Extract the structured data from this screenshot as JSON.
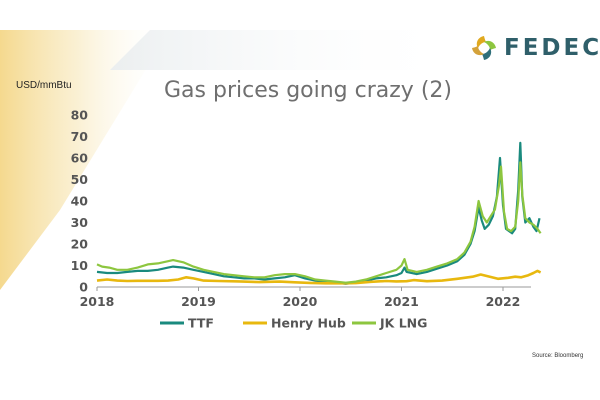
{
  "brand": {
    "name": "FEDEC"
  },
  "chart_data": {
    "type": "line",
    "title": "Gas prices going crazy (2)",
    "ylabel": "USD/mmBtu",
    "xlabel": "",
    "source": "Source: Bloomberg",
    "ylim": [
      0,
      80
    ],
    "xlim": [
      2018,
      2022.37
    ],
    "yticks": [
      0,
      10,
      20,
      30,
      40,
      50,
      60,
      70,
      80
    ],
    "xticks": [
      "2018",
      "2019",
      "2020",
      "2021",
      "2022"
    ],
    "grid": false,
    "legend_position": "bottom",
    "series": [
      {
        "name": "TTF",
        "color": "#1a8a7e",
        "points": [
          [
            2018.0,
            7.0
          ],
          [
            2018.1,
            6.5
          ],
          [
            2018.2,
            6.5
          ],
          [
            2018.3,
            7.0
          ],
          [
            2018.4,
            7.5
          ],
          [
            2018.5,
            7.5
          ],
          [
            2018.6,
            8.0
          ],
          [
            2018.7,
            9.0
          ],
          [
            2018.75,
            9.5
          ],
          [
            2018.85,
            9.0
          ],
          [
            2018.95,
            8.0
          ],
          [
            2019.05,
            7.0
          ],
          [
            2019.15,
            6.0
          ],
          [
            2019.25,
            5.0
          ],
          [
            2019.35,
            4.5
          ],
          [
            2019.45,
            4.0
          ],
          [
            2019.55,
            4.0
          ],
          [
            2019.65,
            3.5
          ],
          [
            2019.75,
            4.0
          ],
          [
            2019.85,
            4.5
          ],
          [
            2019.95,
            5.5
          ],
          [
            2020.05,
            4.0
          ],
          [
            2020.15,
            3.0
          ],
          [
            2020.25,
            2.5
          ],
          [
            2020.35,
            2.0
          ],
          [
            2020.45,
            1.5
          ],
          [
            2020.55,
            2.0
          ],
          [
            2020.65,
            3.0
          ],
          [
            2020.75,
            4.0
          ],
          [
            2020.85,
            4.5
          ],
          [
            2020.95,
            5.5
          ],
          [
            2021.0,
            6.5
          ],
          [
            2021.03,
            9.0
          ],
          [
            2021.05,
            7.0
          ],
          [
            2021.15,
            6.0
          ],
          [
            2021.25,
            7.0
          ],
          [
            2021.35,
            8.5
          ],
          [
            2021.45,
            10.0
          ],
          [
            2021.55,
            12.0
          ],
          [
            2021.62,
            15.0
          ],
          [
            2021.68,
            20.0
          ],
          [
            2021.72,
            26.0
          ],
          [
            2021.76,
            37.0
          ],
          [
            2021.79,
            31.0
          ],
          [
            2021.82,
            27.0
          ],
          [
            2021.86,
            29.0
          ],
          [
            2021.9,
            33.0
          ],
          [
            2021.94,
            42.0
          ],
          [
            2021.97,
            60.0
          ],
          [
            2022.0,
            38.0
          ],
          [
            2022.03,
            27.0
          ],
          [
            2022.06,
            26.0
          ],
          [
            2022.09,
            25.0
          ],
          [
            2022.12,
            27.0
          ],
          [
            2022.15,
            45.0
          ],
          [
            2022.17,
            67.0
          ],
          [
            2022.19,
            42.0
          ],
          [
            2022.22,
            30.0
          ],
          [
            2022.26,
            32.0
          ],
          [
            2022.3,
            28.0
          ],
          [
            2022.33,
            26.0
          ],
          [
            2022.36,
            32.0
          ]
        ]
      },
      {
        "name": "Henry Hub",
        "color": "#e8b80f",
        "points": [
          [
            2018.0,
            3.0
          ],
          [
            2018.1,
            3.5
          ],
          [
            2018.2,
            3.0
          ],
          [
            2018.3,
            2.8
          ],
          [
            2018.4,
            2.9
          ],
          [
            2018.5,
            2.9
          ],
          [
            2018.6,
            2.9
          ],
          [
            2018.7,
            3.0
          ],
          [
            2018.8,
            3.5
          ],
          [
            2018.88,
            4.5
          ],
          [
            2018.95,
            4.0
          ],
          [
            2019.05,
            3.0
          ],
          [
            2019.2,
            2.8
          ],
          [
            2019.4,
            2.6
          ],
          [
            2019.6,
            2.3
          ],
          [
            2019.8,
            2.5
          ],
          [
            2019.95,
            2.2
          ],
          [
            2020.1,
            1.9
          ],
          [
            2020.25,
            1.7
          ],
          [
            2020.4,
            1.7
          ],
          [
            2020.55,
            1.8
          ],
          [
            2020.7,
            2.4
          ],
          [
            2020.85,
            2.8
          ],
          [
            2020.95,
            2.6
          ],
          [
            2021.05,
            2.7
          ],
          [
            2021.12,
            3.2
          ],
          [
            2021.25,
            2.7
          ],
          [
            2021.4,
            3.0
          ],
          [
            2021.55,
            3.8
          ],
          [
            2021.7,
            4.8
          ],
          [
            2021.78,
            5.8
          ],
          [
            2021.85,
            5.0
          ],
          [
            2021.95,
            3.8
          ],
          [
            2022.05,
            4.3
          ],
          [
            2022.12,
            4.8
          ],
          [
            2022.18,
            4.5
          ],
          [
            2022.25,
            5.5
          ],
          [
            2022.3,
            6.5
          ],
          [
            2022.34,
            7.5
          ],
          [
            2022.37,
            6.8
          ]
        ]
      },
      {
        "name": "JK LNG",
        "color": "#8dc63f",
        "points": [
          [
            2018.0,
            10.5
          ],
          [
            2018.05,
            9.5
          ],
          [
            2018.12,
            9.0
          ],
          [
            2018.2,
            8.0
          ],
          [
            2018.3,
            8.0
          ],
          [
            2018.4,
            9.0
          ],
          [
            2018.5,
            10.5
          ],
          [
            2018.6,
            11.0
          ],
          [
            2018.7,
            12.0
          ],
          [
            2018.75,
            12.5
          ],
          [
            2018.85,
            11.5
          ],
          [
            2018.95,
            9.5
          ],
          [
            2019.05,
            8.0
          ],
          [
            2019.15,
            7.0
          ],
          [
            2019.25,
            6.0
          ],
          [
            2019.35,
            5.5
          ],
          [
            2019.45,
            5.0
          ],
          [
            2019.55,
            4.5
          ],
          [
            2019.65,
            4.5
          ],
          [
            2019.75,
            5.5
          ],
          [
            2019.85,
            6.0
          ],
          [
            2019.95,
            6.0
          ],
          [
            2020.05,
            5.0
          ],
          [
            2020.15,
            3.5
          ],
          [
            2020.25,
            3.0
          ],
          [
            2020.35,
            2.5
          ],
          [
            2020.45,
            2.0
          ],
          [
            2020.55,
            2.5
          ],
          [
            2020.65,
            3.5
          ],
          [
            2020.75,
            5.0
          ],
          [
            2020.85,
            6.5
          ],
          [
            2020.95,
            8.0
          ],
          [
            2021.0,
            10.0
          ],
          [
            2021.03,
            13.0
          ],
          [
            2021.06,
            8.0
          ],
          [
            2021.15,
            7.0
          ],
          [
            2021.25,
            8.0
          ],
          [
            2021.35,
            9.5
          ],
          [
            2021.45,
            11.0
          ],
          [
            2021.55,
            13.0
          ],
          [
            2021.62,
            16.0
          ],
          [
            2021.68,
            21.0
          ],
          [
            2021.72,
            28.0
          ],
          [
            2021.76,
            40.0
          ],
          [
            2021.8,
            33.0
          ],
          [
            2021.84,
            30.0
          ],
          [
            2021.88,
            33.0
          ],
          [
            2021.92,
            36.0
          ],
          [
            2021.96,
            47.0
          ],
          [
            2021.98,
            56.0
          ],
          [
            2022.01,
            35.0
          ],
          [
            2022.04,
            27.0
          ],
          [
            2022.08,
            26.0
          ],
          [
            2022.12,
            28.0
          ],
          [
            2022.15,
            40.0
          ],
          [
            2022.17,
            58.0
          ],
          [
            2022.19,
            43.0
          ],
          [
            2022.22,
            32.0
          ],
          [
            2022.26,
            30.0
          ],
          [
            2022.3,
            29.0
          ],
          [
            2022.34,
            27.0
          ],
          [
            2022.37,
            25.0
          ]
        ]
      }
    ]
  }
}
